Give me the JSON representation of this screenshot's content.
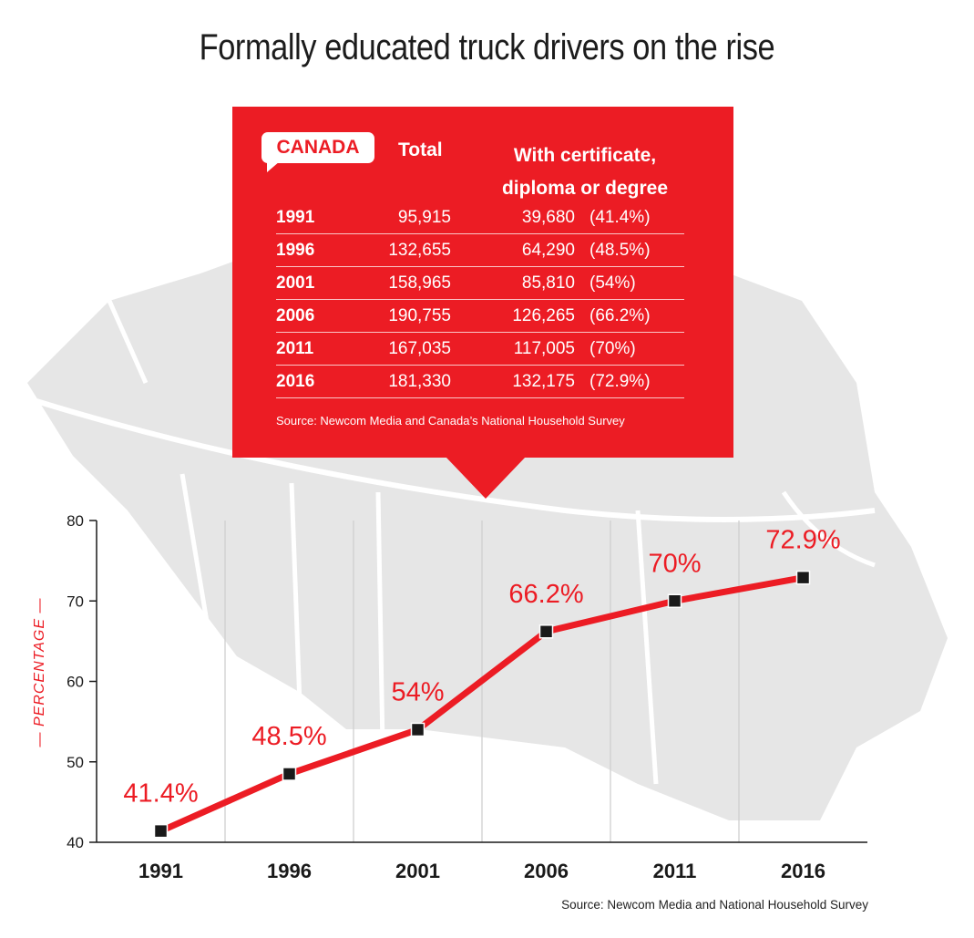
{
  "title": "Formally educated truck drivers on the rise",
  "table": {
    "badge": "CANADA",
    "headers": {
      "total": "Total",
      "certificate_line1": "With certificate,",
      "certificate_line2": "diploma or degree"
    },
    "rows": [
      {
        "year": "1991",
        "total": "95,915",
        "certified": "39,680",
        "pct": "(41.4%)"
      },
      {
        "year": "1996",
        "total": "132,655",
        "certified": "64,290",
        "pct": "(48.5%)"
      },
      {
        "year": "2001",
        "total": "158,965",
        "certified": "85,810",
        "pct": "(54%)"
      },
      {
        "year": "2006",
        "total": "190,755",
        "certified": "126,265",
        "pct": "(66.2%)"
      },
      {
        "year": "2011",
        "total": "167,035",
        "certified": "117,005",
        "pct": "(70%)"
      },
      {
        "year": "2016",
        "total": "181,330",
        "certified": "132,175",
        "pct": "(72.9%)"
      }
    ],
    "source": "Source: Newcom Media and Canada’s National Household Survey"
  },
  "chart_data": {
    "type": "line",
    "x": [
      "1991",
      "1996",
      "2001",
      "2006",
      "2011",
      "2016"
    ],
    "series": [
      {
        "values": [
          41.4,
          48.5,
          54,
          66.2,
          70,
          72.9
        ]
      }
    ],
    "data_labels": [
      "41.4%",
      "48.5%",
      "54%",
      "66.2%",
      "70%",
      "72.9%"
    ],
    "ylabel": "— PERCENTAGE —",
    "ylim": [
      40,
      80
    ],
    "yticks": [
      40,
      50,
      60,
      70,
      80
    ],
    "grid": true,
    "colors": {
      "line": "#ec1c24",
      "marker": "#1a1a1a",
      "label": "#ec1c24"
    }
  },
  "chart_source": "Source: Newcom Media and National Household Survey"
}
